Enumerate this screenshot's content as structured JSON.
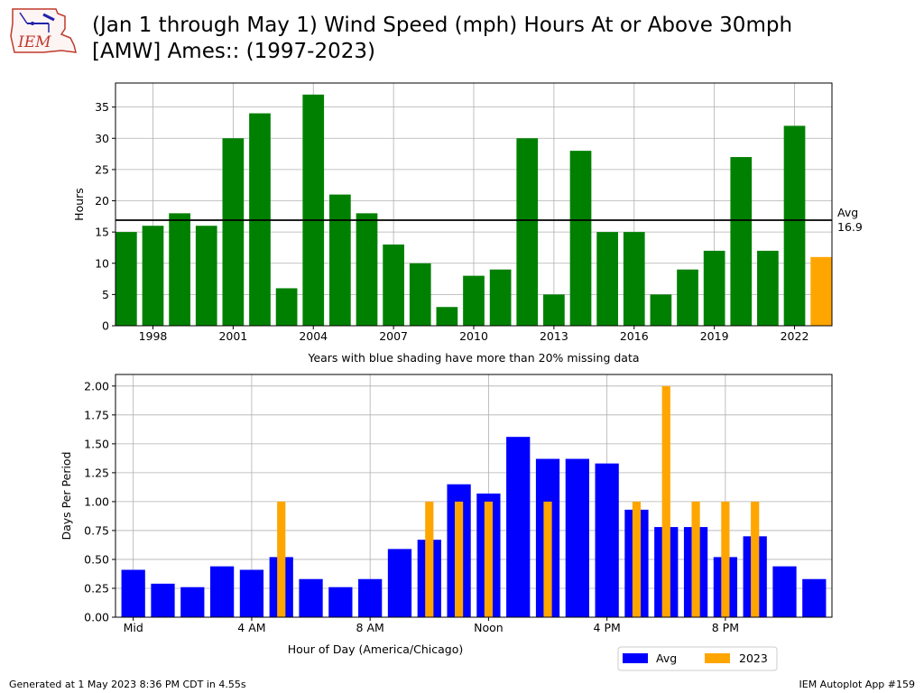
{
  "header": {
    "title_line1": "(Jan 1 through May 1) Wind Speed (mph) Hours At or Above 30mph",
    "title_line2": "[AMW] Ames:: (1997-2023)",
    "logo_text": "IEM"
  },
  "footer": {
    "left": "Generated at 1 May 2023 8:36 PM CDT in 4.55s",
    "right": "IEM Autoplot App #159"
  },
  "chart_data": [
    {
      "type": "bar",
      "ylabel": "Hours",
      "xlabel": "Years with blue shading have more than 20% missing data",
      "x": [
        1997,
        1998,
        1999,
        2000,
        2001,
        2002,
        2003,
        2004,
        2005,
        2006,
        2007,
        2008,
        2009,
        2010,
        2011,
        2012,
        2013,
        2014,
        2015,
        2016,
        2017,
        2018,
        2019,
        2020,
        2021,
        2022,
        2023
      ],
      "values": [
        15,
        16,
        18,
        16,
        30,
        34,
        6,
        37,
        21,
        18,
        13,
        10,
        3,
        8,
        9,
        30,
        5,
        28,
        15,
        15,
        5,
        9,
        12,
        27,
        12,
        32,
        11
      ],
      "highlight_year": 2023,
      "colors": {
        "default": "#008000",
        "highlight": "#ffa500"
      },
      "xlim": [
        1996.6,
        2023.4
      ],
      "ylim": [
        0,
        38.85
      ],
      "xticks": [
        1998,
        2001,
        2004,
        2007,
        2010,
        2013,
        2016,
        2019,
        2022
      ],
      "yticks": [
        0,
        5,
        10,
        15,
        20,
        25,
        30,
        35
      ],
      "grid": true,
      "avg_line": {
        "value": 16.9,
        "label_line1": "Avg",
        "label_line2": "16.9"
      }
    },
    {
      "type": "bar",
      "ylabel": "Days Per Period",
      "xlabel": "Hour of Day (America/Chicago)",
      "x": [
        0,
        1,
        2,
        3,
        4,
        5,
        6,
        7,
        8,
        9,
        10,
        11,
        12,
        13,
        14,
        15,
        16,
        17,
        18,
        19,
        20,
        21,
        22,
        23
      ],
      "xlim": [
        -0.6,
        23.6
      ],
      "ylim": [
        0,
        2.1
      ],
      "xticks": [
        0,
        4,
        8,
        12,
        16,
        20
      ],
      "xtick_labels": [
        "Mid",
        "4 AM",
        "8 AM",
        "Noon",
        "4 PM",
        "8 PM"
      ],
      "yticks": [
        "0.00",
        "0.25",
        "0.50",
        "0.75",
        "1.00",
        "1.25",
        "1.50",
        "1.75",
        "2.00"
      ],
      "grid": true,
      "legend_position": "bottom-right",
      "series": [
        {
          "name": "Avg",
          "color": "#0000ff",
          "values": [
            0.41,
            0.29,
            0.26,
            0.44,
            0.41,
            0.52,
            0.33,
            0.26,
            0.33,
            0.59,
            0.67,
            1.15,
            1.07,
            1.56,
            1.37,
            1.37,
            1.33,
            0.93,
            0.78,
            0.78,
            0.52,
            0.7,
            0.44,
            0.33
          ]
        },
        {
          "name": "2023",
          "color": "#ffa500",
          "values": [
            0,
            0,
            0,
            0,
            0,
            1,
            0,
            0,
            0,
            0,
            1,
            1,
            1,
            0,
            1,
            0,
            0,
            1,
            2,
            1,
            1,
            1,
            0,
            0
          ]
        }
      ]
    }
  ]
}
